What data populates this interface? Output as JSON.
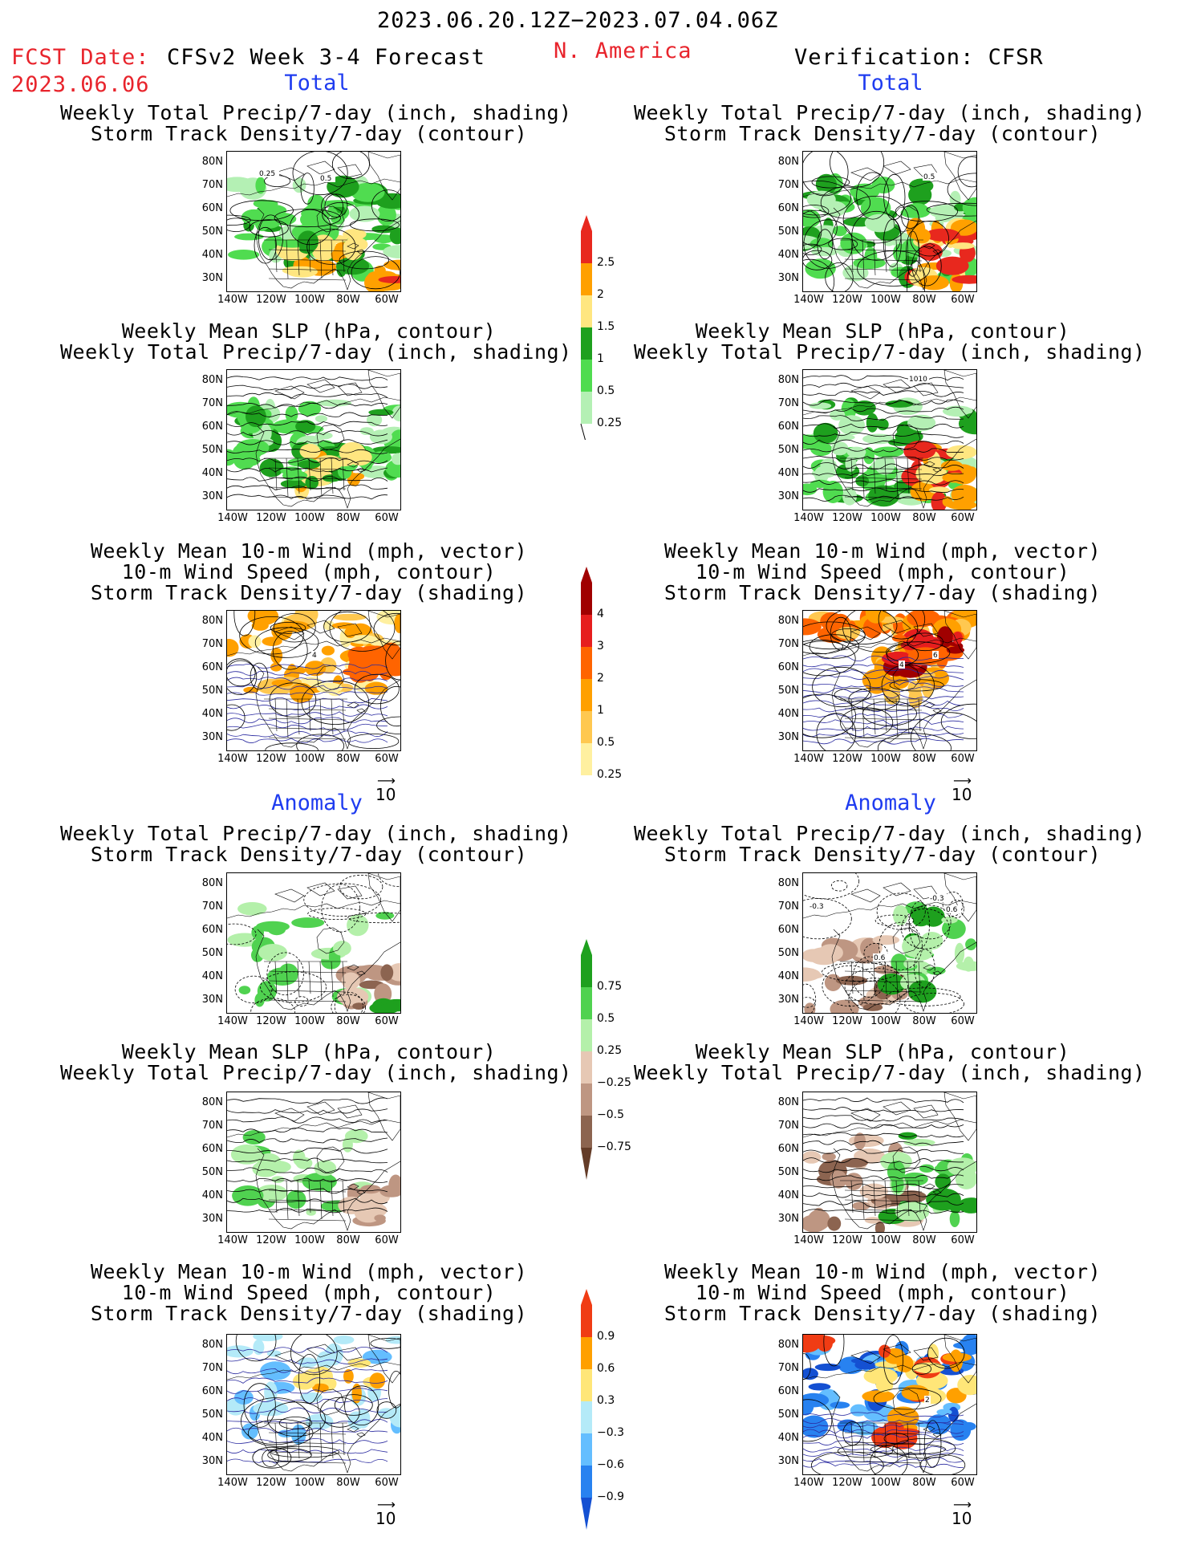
{
  "header": {
    "date_range": "2023.06.20.12Z−2023.07.04.06Z",
    "fcst_label": "FCST Date:",
    "fcst_date": "2023.06.06",
    "model": "CFSv2 Week 3-4 Forecast",
    "region": "N. America",
    "verification": "Verification: CFSR"
  },
  "sections": {
    "total": "Total",
    "anomaly": "Anomaly"
  },
  "panel_titles": {
    "precip_storm": [
      "Weekly Total Precip/7-day (inch, shading)",
      "Storm Track Density/7-day (contour)"
    ],
    "slp_precip": [
      "Weekly Mean SLP (hPa, contour)",
      "Weekly Total Precip/7-day (inch, shading)"
    ],
    "wind_storm": [
      "Weekly Mean 10-m Wind (mph, vector)",
      "10-m Wind Speed (mph, contour)",
      "Storm Track Density/7-day (shading)"
    ]
  },
  "axes": {
    "lat_labels": [
      "80N",
      "70N",
      "60N",
      "50N",
      "40N",
      "30N"
    ],
    "lon_labels": [
      "140W",
      "120W",
      "100W",
      "80W",
      "60W"
    ]
  },
  "vector_reference": "10",
  "contour_labels": {
    "fc_total_precip": [
      "0.25",
      "0.5"
    ],
    "obs_total_precip": [
      "0.5"
    ],
    "obs_total_slp": [
      "1010"
    ],
    "fc_total_wind": [
      "4"
    ],
    "obs_total_wind": [
      "4",
      "6"
    ],
    "obs_anom_precip": [
      "-0.3",
      "-0.3",
      "0.6",
      "0.6"
    ],
    "obs_anom_wind": [
      "2"
    ]
  },
  "colorbars": {
    "precip_total": {
      "labels": [
        "2.5",
        "2",
        "1.5",
        "1",
        "0.5",
        "0.25"
      ],
      "colors": [
        "#e8281e",
        "#ffa000",
        "#ffe680",
        "#1ea01e",
        "#50dc50",
        "#b4f0b4"
      ]
    },
    "storm_total": {
      "labels": [
        "4",
        "3",
        "2",
        "1",
        "0.5",
        "0.25"
      ],
      "colors": [
        "#a00000",
        "#e61e1e",
        "#ff6400",
        "#ffa000",
        "#ffc850",
        "#fff0a0"
      ]
    },
    "precip_anomaly": {
      "labels": [
        "0.75",
        "0.5",
        "0.25",
        "−0.25",
        "−0.5",
        "−0.75"
      ],
      "colors": [
        "#1ea01e",
        "#50d250",
        "#b4f0aa",
        "#e6c8b4",
        "#be9682",
        "#8c6450",
        "#643c28"
      ]
    },
    "storm_anomaly": {
      "labels": [
        "0.9",
        "0.6",
        "0.3",
        "−0.3",
        "−0.6",
        "−0.9"
      ],
      "colors": [
        "#f03c14",
        "#ffa000",
        "#ffe678",
        "#b4eaf8",
        "#64beff",
        "#2882f0",
        "#1450d2"
      ]
    }
  }
}
